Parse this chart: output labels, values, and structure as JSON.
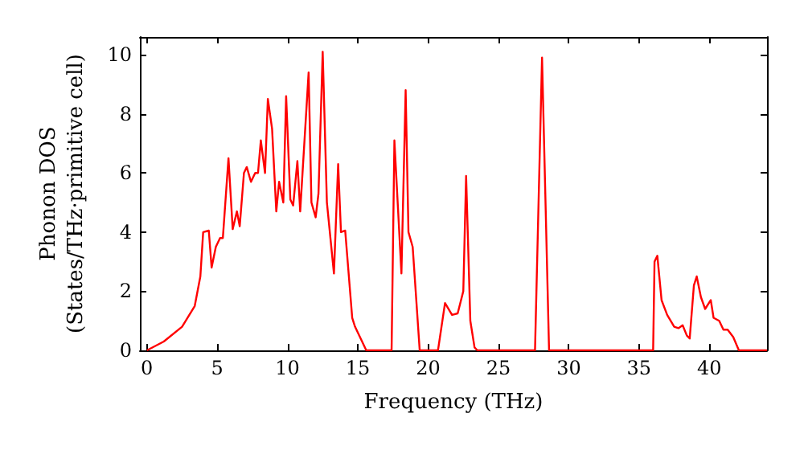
{
  "chart_data": {
    "type": "line",
    "xlabel": "Frequency (THz)",
    "ylabel": "Phonon DOS\n(States/THz·primitive cell)",
    "x": [
      0,
      1.2,
      2.5,
      3.4,
      3.8,
      4.0,
      4.4,
      4.6,
      4.9,
      5.2,
      5.4,
      5.8,
      6.1,
      6.4,
      6.6,
      6.9,
      7.1,
      7.4,
      7.7,
      7.9,
      8.1,
      8.4,
      8.6,
      8.9,
      9.2,
      9.4,
      9.7,
      9.9,
      10.2,
      10.4,
      10.7,
      10.9,
      11.5,
      11.7,
      12.0,
      12.2,
      12.5,
      12.8,
      13.3,
      13.6,
      13.8,
      14.1,
      14.6,
      14.8,
      15.6,
      17.4,
      17.6,
      18.1,
      18.4,
      18.6,
      18.9,
      19.4,
      20.7,
      21.2,
      21.7,
      22.1,
      22.5,
      22.7,
      23.0,
      23.3,
      23.5,
      27.6,
      28.1,
      28.6,
      36.0,
      36.1,
      36.3,
      36.6,
      37.0,
      37.5,
      37.8,
      38.1,
      38.4,
      38.6,
      38.9,
      39.1,
      39.4,
      39.7,
      40.1,
      40.3,
      40.7,
      41.0,
      41.3,
      41.7,
      42.1,
      44.1
    ],
    "series": [
      {
        "color": "#ff0000",
        "values": [
          0,
          0.3,
          0.8,
          1.5,
          2.5,
          4.0,
          4.05,
          2.8,
          3.5,
          3.8,
          3.8,
          6.5,
          4.1,
          4.7,
          4.2,
          6.0,
          6.2,
          5.7,
          6.0,
          6.0,
          7.1,
          6.0,
          8.5,
          7.5,
          4.7,
          5.7,
          5.0,
          8.6,
          5.1,
          4.9,
          6.4,
          4.7,
          9.4,
          5.0,
          4.5,
          5.3,
          10.1,
          5.0,
          2.6,
          6.3,
          4.0,
          4.05,
          1.1,
          0.8,
          0,
          0,
          7.1,
          2.6,
          8.8,
          4.0,
          3.5,
          0,
          0,
          1.6,
          1.2,
          1.25,
          2.0,
          5.9,
          1.0,
          0.1,
          0,
          0,
          9.9,
          0,
          0,
          3.0,
          3.2,
          1.7,
          1.2,
          0.8,
          0.75,
          0.85,
          0.5,
          0.4,
          2.2,
          2.5,
          1.8,
          1.4,
          1.7,
          1.1,
          1.0,
          0.7,
          0.7,
          0.45,
          0,
          0
        ]
      }
    ],
    "xlim": [
      -0.5,
      44.1
    ],
    "ylim": [
      0,
      10.6
    ],
    "xticks": [
      0,
      5,
      10,
      15,
      20,
      25,
      30,
      35,
      40
    ],
    "yticks": [
      0,
      2,
      4,
      6,
      8,
      10
    ],
    "grid": false,
    "marker": "none",
    "line_style": "solid"
  }
}
